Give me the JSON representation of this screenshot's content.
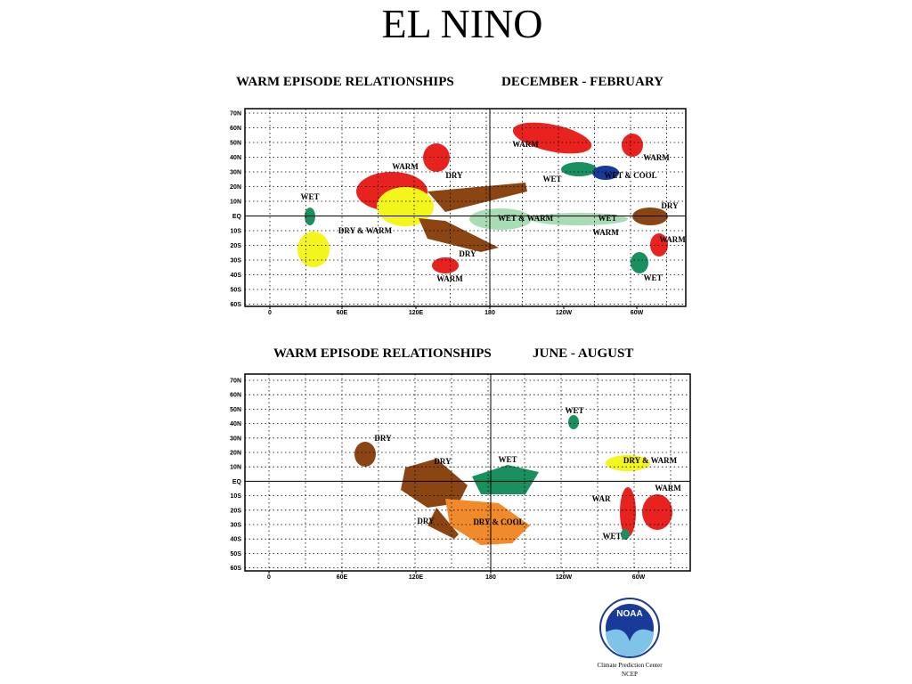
{
  "title": "EL NINO",
  "maps": [
    {
      "title": "WARM EPISODE RELATIONSHIPS",
      "season": "DECEMBER - FEBRUARY",
      "lat_labels": [
        "70N",
        "60N",
        "50N",
        "40N",
        "30N",
        "20N",
        "10N",
        "EQ",
        "10S",
        "20S",
        "30S",
        "40S",
        "50S",
        "60S"
      ],
      "lon_labels": [
        "0",
        "60E",
        "120E",
        "180",
        "120W",
        "60W"
      ],
      "regions": [
        "WARM",
        "WARM",
        "DRY",
        "WET",
        "WET & COOL",
        "WARM",
        "WET",
        "WET & WARM",
        "WET",
        "DRY",
        "DRY & WARM",
        "WARM",
        "WARM",
        "DRY",
        "WARM",
        "WET"
      ]
    },
    {
      "title": "WARM EPISODE RELATIONSHIPS",
      "season": "JUNE - AUGUST",
      "lat_labels": [
        "70N",
        "60N",
        "50N",
        "40N",
        "30N",
        "20N",
        "10N",
        "EQ",
        "10S",
        "20S",
        "30S",
        "40S",
        "50S",
        "60S"
      ],
      "lon_labels": [
        "0",
        "60E",
        "120E",
        "180",
        "120W",
        "60W"
      ],
      "regions": [
        "WET",
        "DRY",
        "DRY",
        "WET",
        "DRY & WARM",
        "WARM",
        "WAR",
        "DRY",
        "DRY & COOL",
        "WET"
      ]
    }
  ],
  "logo": {
    "text": "NOAA",
    "caption": [
      "Climate Prediction Center",
      "NCEP"
    ]
  }
}
